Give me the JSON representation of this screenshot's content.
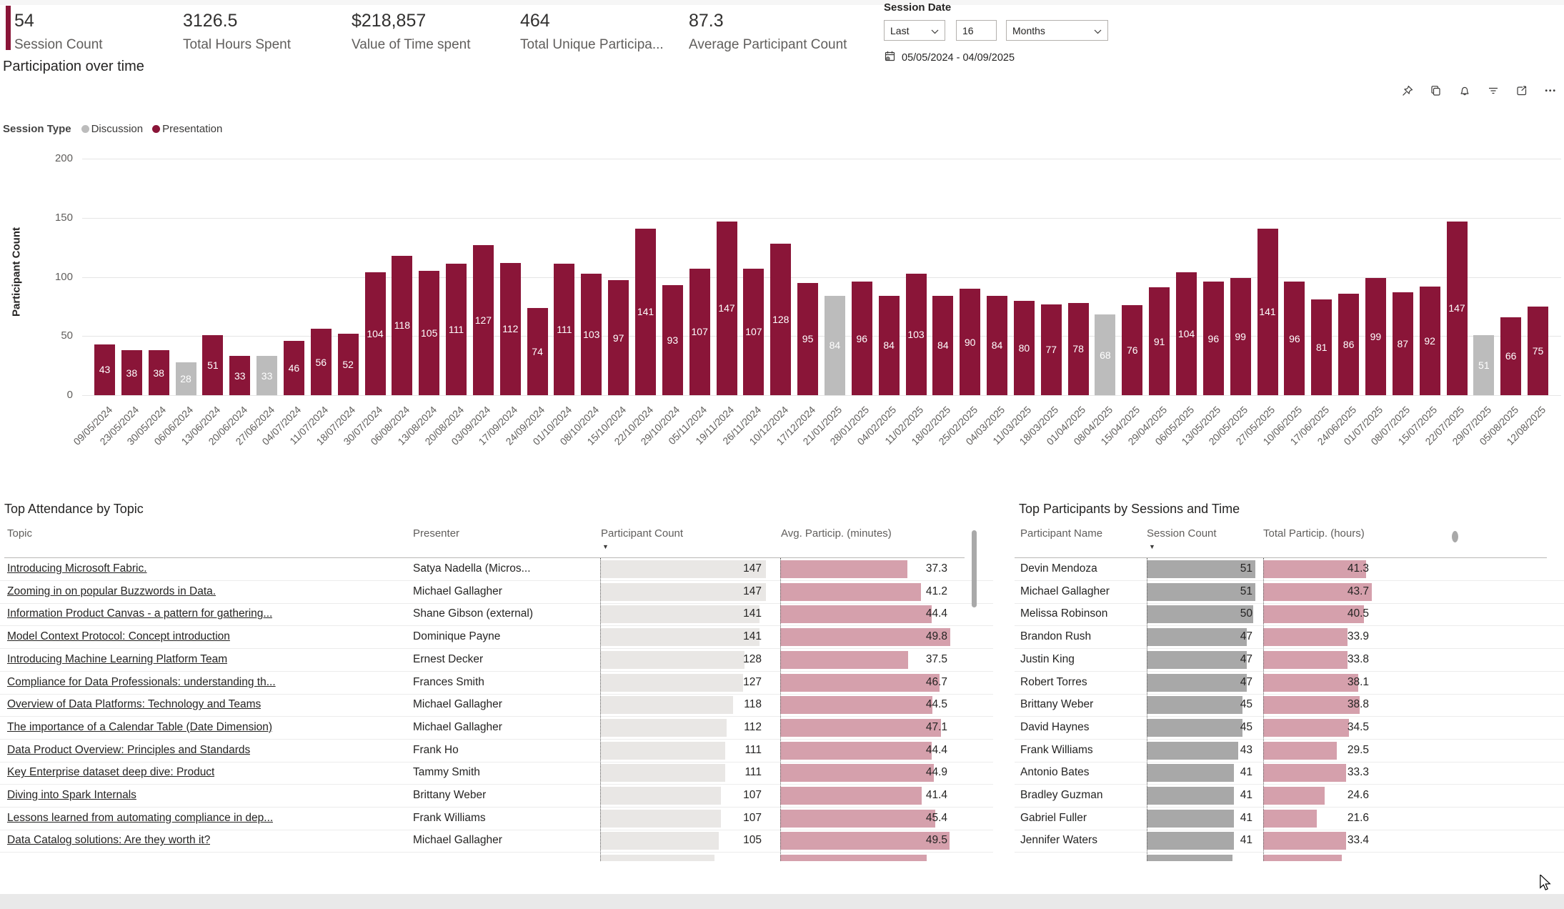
{
  "colors": {
    "accent": "#8a1538",
    "presentation": "#8a1538",
    "discussion": "#bcbcbc",
    "pink_bar": "#d5a0ac",
    "light_gray_bar": "#e9e7e5",
    "mid_gray_bar": "#a8a8a8"
  },
  "kpis": [
    {
      "value": "54",
      "label": "Session Count"
    },
    {
      "value": "3126.5",
      "label": "Total Hours Spent"
    },
    {
      "value": "$218,857",
      "label": "Value of Time spent"
    },
    {
      "value": "464",
      "label": "Total Unique Participa..."
    },
    {
      "value": "87.3",
      "label": "Average Participant Count"
    }
  ],
  "slicer": {
    "title": "Session Date",
    "mode": "Last",
    "value": "16",
    "unit": "Months",
    "range": "05/05/2024 - 04/09/2025"
  },
  "toolbar_icons": [
    "pin",
    "copy",
    "bell",
    "filter",
    "focus-mode",
    "more-options"
  ],
  "chart_data": {
    "type": "bar",
    "title": "Participation over time",
    "legend_title": "Session Type",
    "legend": [
      {
        "label": "Discussion",
        "color": "#bcbcbc"
      },
      {
        "label": "Presentation",
        "color": "#8a1538"
      }
    ],
    "ylabel": "Participant Count",
    "ylim": [
      0,
      200
    ],
    "y_ticks": [
      0,
      50,
      100,
      150,
      200
    ],
    "grid": true,
    "legend_position": "top-left",
    "categories": [
      "09/05/2024",
      "23/05/2024",
      "30/05/2024",
      "06/06/2024",
      "13/06/2024",
      "20/06/2024",
      "27/06/2024",
      "04/07/2024",
      "11/07/2024",
      "18/07/2024",
      "30/07/2024",
      "06/08/2024",
      "13/08/2024",
      "20/08/2024",
      "03/09/2024",
      "17/09/2024",
      "24/09/2024",
      "01/10/2024",
      "08/10/2024",
      "15/10/2024",
      "22/10/2024",
      "29/10/2024",
      "05/11/2024",
      "19/11/2024",
      "26/11/2024",
      "10/12/2024",
      "17/12/2024",
      "21/01/2025",
      "28/01/2025",
      "04/02/2025",
      "11/02/2025",
      "18/02/2025",
      "25/02/2025",
      "04/03/2025",
      "11/03/2025",
      "18/03/2025",
      "01/04/2025",
      "08/04/2025",
      "15/04/2025",
      "29/04/2025",
      "06/05/2025",
      "13/05/2025",
      "20/05/2025",
      "27/05/2025",
      "10/06/2025",
      "17/06/2025",
      "24/06/2025",
      "01/07/2025",
      "08/07/2025",
      "15/07/2025",
      "22/07/2025",
      "29/07/2025",
      "05/08/2025",
      "12/08/2025"
    ],
    "values": [
      43,
      38,
      38,
      28,
      51,
      33,
      33,
      46,
      56,
      52,
      104,
      118,
      105,
      111,
      127,
      112,
      74,
      111,
      103,
      97,
      141,
      93,
      107,
      147,
      107,
      128,
      95,
      84,
      96,
      84,
      103,
      84,
      90,
      84,
      80,
      77,
      78,
      68,
      76,
      91,
      104,
      96,
      99,
      141,
      96,
      81,
      86,
      99,
      87,
      92,
      147,
      51,
      66,
      75
    ],
    "point_series": [
      "Presentation",
      "Presentation",
      "Presentation",
      "Discussion",
      "Presentation",
      "Presentation",
      "Discussion",
      "Presentation",
      "Presentation",
      "Presentation",
      "Presentation",
      "Presentation",
      "Presentation",
      "Presentation",
      "Presentation",
      "Presentation",
      "Presentation",
      "Presentation",
      "Presentation",
      "Presentation",
      "Presentation",
      "Presentation",
      "Presentation",
      "Presentation",
      "Presentation",
      "Presentation",
      "Presentation",
      "Discussion",
      "Presentation",
      "Presentation",
      "Presentation",
      "Presentation",
      "Presentation",
      "Presentation",
      "Presentation",
      "Presentation",
      "Presentation",
      "Discussion",
      "Presentation",
      "Presentation",
      "Presentation",
      "Presentation",
      "Presentation",
      "Presentation",
      "Presentation",
      "Presentation",
      "Presentation",
      "Presentation",
      "Presentation",
      "Presentation",
      "Presentation",
      "Discussion",
      "Presentation",
      "Presentation"
    ]
  },
  "left_table": {
    "title": "Top Attendance by Topic",
    "columns": [
      "Topic",
      "Presenter",
      "Participant Count",
      "Avg. Particip. (minutes)"
    ],
    "sort": {
      "column": "Participant Count",
      "direction": "desc"
    },
    "max": {
      "count": 147,
      "avg": 49.8
    },
    "rows": [
      {
        "topic": "Introducing Microsoft Fabric.",
        "presenter": "Satya Nadella (Micros...",
        "count": 147,
        "avg": 37.3
      },
      {
        "topic": "Zooming in on popular Buzzwords in Data.",
        "presenter": "Michael Gallagher",
        "count": 147,
        "avg": 41.2
      },
      {
        "topic": "Information Product Canvas - a pattern for gathering...",
        "presenter": "Shane Gibson (external)",
        "count": 141,
        "avg": 44.4
      },
      {
        "topic": "Model Context Protocol: Concept introduction",
        "presenter": "Dominique Payne",
        "count": 141,
        "avg": 49.8
      },
      {
        "topic": "Introducing Machine Learning Platform Team",
        "presenter": "Ernest Decker",
        "count": 128,
        "avg": 37.5
      },
      {
        "topic": "Compliance for Data Professionals: understanding th...",
        "presenter": "Frances Smith",
        "count": 127,
        "avg": 46.7
      },
      {
        "topic": "Overview of Data Platforms: Technology and Teams",
        "presenter": "Michael Gallagher",
        "count": 118,
        "avg": 44.5
      },
      {
        "topic": "The importance of a Calendar Table (Date Dimension)",
        "presenter": "Michael Gallagher",
        "count": 112,
        "avg": 47.1
      },
      {
        "topic": "Data Product Overview: Principles and Standards",
        "presenter": "Frank Ho",
        "count": 111,
        "avg": 44.4
      },
      {
        "topic": "Key Enterprise dataset deep dive: Product",
        "presenter": "Tammy Smith",
        "count": 111,
        "avg": 44.9
      },
      {
        "topic": "Diving into Spark Internals",
        "presenter": "Brittany Weber",
        "count": 107,
        "avg": 41.4
      },
      {
        "topic": "Lessons learned from automating compliance in dep...",
        "presenter": "Frank Williams",
        "count": 107,
        "avg": 45.4
      },
      {
        "topic": "Data Catalog solutions: Are they worth it?",
        "presenter": "Michael Gallagher",
        "count": 105,
        "avg": 49.5
      }
    ]
  },
  "right_table": {
    "title": "Top Participants by Sessions and Time",
    "columns": [
      "Participant Name",
      "Session Count",
      "Total Particip. (hours)"
    ],
    "sort": {
      "column": "Session Count",
      "direction": "desc"
    },
    "max": {
      "sessions": 51,
      "hours": 43.7
    },
    "rows": [
      {
        "name": "Devin Mendoza",
        "sessions": 51,
        "hours": 41.3
      },
      {
        "name": "Michael Gallagher",
        "sessions": 51,
        "hours": 43.7
      },
      {
        "name": "Melissa Robinson",
        "sessions": 50,
        "hours": 40.5
      },
      {
        "name": "Brandon Rush",
        "sessions": 47,
        "hours": 33.9
      },
      {
        "name": "Justin King",
        "sessions": 47,
        "hours": 33.8
      },
      {
        "name": "Robert Torres",
        "sessions": 47,
        "hours": 38.1
      },
      {
        "name": "Brittany Weber",
        "sessions": 45,
        "hours": 38.8
      },
      {
        "name": "David Haynes",
        "sessions": 45,
        "hours": 34.5
      },
      {
        "name": "Frank Williams",
        "sessions": 43,
        "hours": 29.5
      },
      {
        "name": "Antonio Bates",
        "sessions": 41,
        "hours": 33.3
      },
      {
        "name": "Bradley Guzman",
        "sessions": 41,
        "hours": 24.6
      },
      {
        "name": "Gabriel Fuller",
        "sessions": 41,
        "hours": 21.6
      },
      {
        "name": "Jennifer Waters",
        "sessions": 41,
        "hours": 33.4
      }
    ]
  }
}
